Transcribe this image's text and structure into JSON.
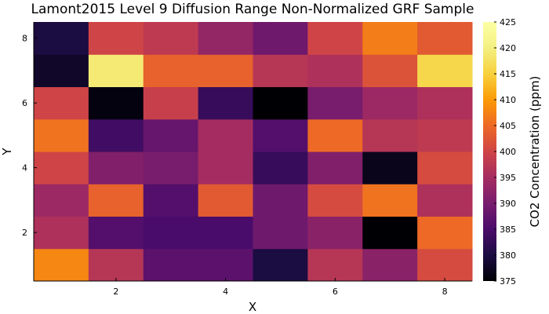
{
  "chart_data": {
    "type": "heatmap",
    "title": "Lamont2015 Level 9 Diffusion Range Non-Normalized GRF Sample",
    "xlabel": "X",
    "ylabel": "Y",
    "colorbar_label": "CO2 Concentration (ppm)",
    "colormap": "inferno",
    "clim": [
      375,
      425
    ],
    "colorbar_ticks": [
      "375",
      "380",
      "385",
      "390",
      "395",
      "400",
      "405",
      "410",
      "415",
      "420",
      "425"
    ],
    "x": [
      1,
      2,
      3,
      4,
      5,
      6,
      7,
      8
    ],
    "y": [
      1,
      2,
      3,
      4,
      5,
      6,
      7,
      8
    ],
    "xlim": [
      0.5,
      8.5
    ],
    "ylim": [
      0.5,
      8.5
    ],
    "xticks": [
      2,
      4,
      6,
      8
    ],
    "yticks": [
      2,
      4,
      6,
      8
    ],
    "grid": false,
    "values_by_row_y": [
      [
        408,
        397,
        387,
        387,
        380,
        397,
        392,
        401
      ],
      [
        396,
        386,
        385,
        385,
        389,
        392,
        375,
        405
      ],
      [
        394,
        404,
        386,
        403,
        389,
        401,
        406,
        396
      ],
      [
        400,
        391,
        390,
        395,
        383,
        391,
        377,
        401
      ],
      [
        406,
        384,
        388,
        395,
        386,
        405,
        397,
        398
      ],
      [
        400,
        376,
        399,
        383,
        375,
        390,
        394,
        396
      ],
      [
        378,
        419,
        404,
        404,
        397,
        396,
        402,
        416
      ],
      [
        380,
        400,
        398,
        393,
        389,
        400,
        407,
        403
      ]
    ]
  }
}
